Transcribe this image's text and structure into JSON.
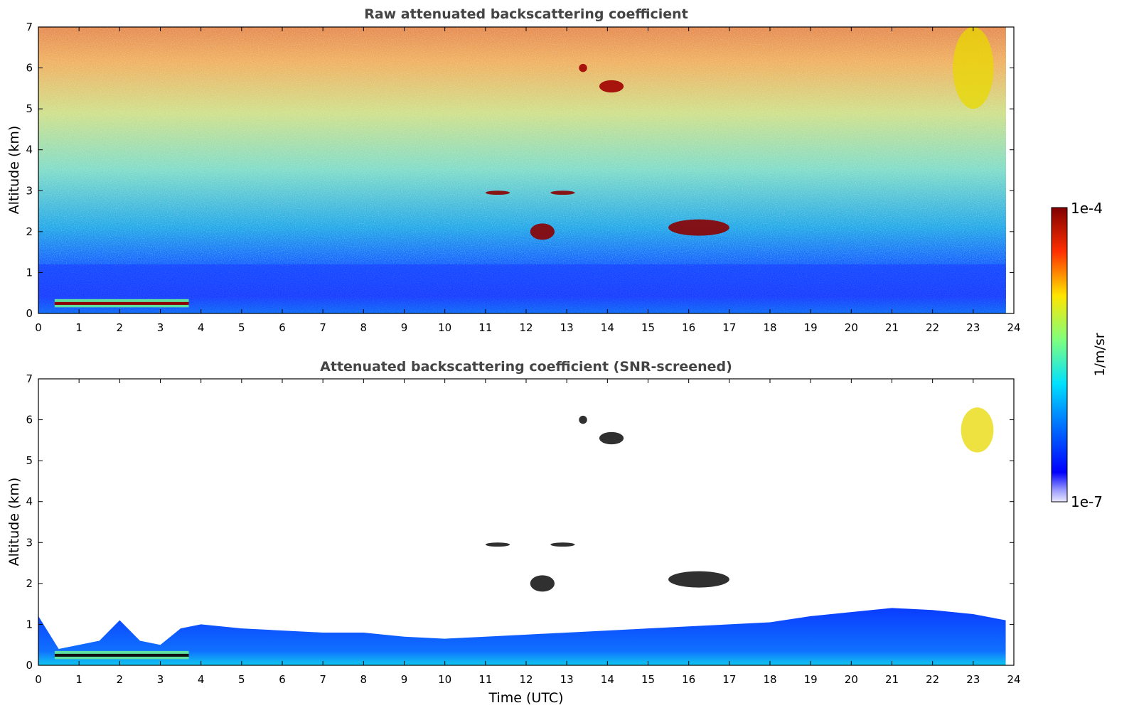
{
  "chart_data": [
    {
      "type": "heatmap",
      "title": "Raw attenuated backscattering coefficient",
      "xlabel": "",
      "ylabel": "Altitude (km)",
      "xlim": [
        0,
        24
      ],
      "ylim": [
        0,
        7
      ],
      "x_ticks": [
        "0",
        "1",
        "2",
        "3",
        "4",
        "5",
        "6",
        "7",
        "8",
        "9",
        "10",
        "11",
        "12",
        "13",
        "14",
        "15",
        "16",
        "17",
        "18",
        "19",
        "20",
        "21",
        "22",
        "23",
        "24"
      ],
      "y_ticks": [
        "0",
        "1",
        "2",
        "3",
        "4",
        "5",
        "6",
        "7"
      ],
      "data_end_time": 23.8,
      "features": [
        {
          "kind": "boundary_layer",
          "description": "aerosol layer, strong near surface",
          "x": [
            0,
            23.8
          ],
          "y": [
            0,
            1.2
          ]
        },
        {
          "kind": "low_cloud",
          "x": [
            0.4,
            3.7
          ],
          "y": [
            0.15,
            0.35
          ]
        },
        {
          "kind": "cloud",
          "x": [
            11.0,
            11.6
          ],
          "y": [
            2.9,
            3.0
          ]
        },
        {
          "kind": "cloud",
          "x": [
            12.6,
            13.2
          ],
          "y": [
            2.9,
            3.0
          ]
        },
        {
          "kind": "cloud",
          "x": [
            12.1,
            12.7
          ],
          "y": [
            1.8,
            2.2
          ]
        },
        {
          "kind": "cloud",
          "x": [
            15.5,
            17.0
          ],
          "y": [
            1.9,
            2.3
          ]
        },
        {
          "kind": "high_cloud",
          "x": [
            13.8,
            14.4
          ],
          "y": [
            5.4,
            5.7
          ]
        },
        {
          "kind": "high_cloud",
          "x": [
            13.3,
            13.5
          ],
          "y": [
            5.9,
            6.1
          ]
        },
        {
          "kind": "cirrus",
          "x": [
            22.5,
            23.5
          ],
          "y": [
            5.0,
            7.0
          ]
        }
      ]
    },
    {
      "type": "heatmap",
      "title": "Attenuated backscattering coefficient (SNR-screened)",
      "xlabel": "Time (UTC)",
      "ylabel": "Altitude (km)",
      "xlim": [
        0,
        24
      ],
      "ylim": [
        0,
        7
      ],
      "x_ticks": [
        "0",
        "1",
        "2",
        "3",
        "4",
        "5",
        "6",
        "7",
        "8",
        "9",
        "10",
        "11",
        "12",
        "13",
        "14",
        "15",
        "16",
        "17",
        "18",
        "19",
        "20",
        "21",
        "22",
        "23",
        "24"
      ],
      "y_ticks": [
        "0",
        "1",
        "2",
        "3",
        "4",
        "5",
        "6",
        "7"
      ],
      "data_end_time": 23.8,
      "boundary_layer_top_km": [
        [
          0,
          1.2
        ],
        [
          0.5,
          0.4
        ],
        [
          1.0,
          0.5
        ],
        [
          1.5,
          0.6
        ],
        [
          2.0,
          1.1
        ],
        [
          2.5,
          0.6
        ],
        [
          3.0,
          0.5
        ],
        [
          3.5,
          0.9
        ],
        [
          4.0,
          1.0
        ],
        [
          5.0,
          0.9
        ],
        [
          6.0,
          0.85
        ],
        [
          7.0,
          0.8
        ],
        [
          8.0,
          0.8
        ],
        [
          9.0,
          0.7
        ],
        [
          10.0,
          0.65
        ],
        [
          11.0,
          0.7
        ],
        [
          12.0,
          0.75
        ],
        [
          13.0,
          0.8
        ],
        [
          14.0,
          0.85
        ],
        [
          15.0,
          0.9
        ],
        [
          16.0,
          0.95
        ],
        [
          17.0,
          1.0
        ],
        [
          18.0,
          1.05
        ],
        [
          19.0,
          1.2
        ],
        [
          20.0,
          1.3
        ],
        [
          21.0,
          1.4
        ],
        [
          22.0,
          1.35
        ],
        [
          23.0,
          1.25
        ],
        [
          23.8,
          1.1
        ]
      ],
      "features": [
        {
          "kind": "low_cloud",
          "x": [
            0.4,
            3.7
          ],
          "y": [
            0.15,
            0.35
          ]
        },
        {
          "kind": "cloud",
          "x": [
            11.0,
            11.6
          ],
          "y": [
            2.9,
            3.0
          ]
        },
        {
          "kind": "cloud",
          "x": [
            12.6,
            13.2
          ],
          "y": [
            2.9,
            3.0
          ]
        },
        {
          "kind": "cloud",
          "x": [
            12.1,
            12.7
          ],
          "y": [
            1.8,
            2.2
          ]
        },
        {
          "kind": "cloud",
          "x": [
            15.5,
            17.0
          ],
          "y": [
            1.9,
            2.3
          ]
        },
        {
          "kind": "high_cloud",
          "x": [
            13.8,
            14.4
          ],
          "y": [
            5.4,
            5.7
          ]
        },
        {
          "kind": "high_cloud",
          "x": [
            13.3,
            13.5
          ],
          "y": [
            5.9,
            6.1
          ]
        },
        {
          "kind": "cirrus",
          "x": [
            22.7,
            23.5
          ],
          "y": [
            5.2,
            6.3
          ]
        }
      ]
    }
  ],
  "colorbar": {
    "label": "1/m/sr",
    "max_label": "1e-4",
    "min_label": "1e-7",
    "scale": "log",
    "colormap": "jet",
    "range": [
      1e-07,
      0.0001
    ]
  }
}
